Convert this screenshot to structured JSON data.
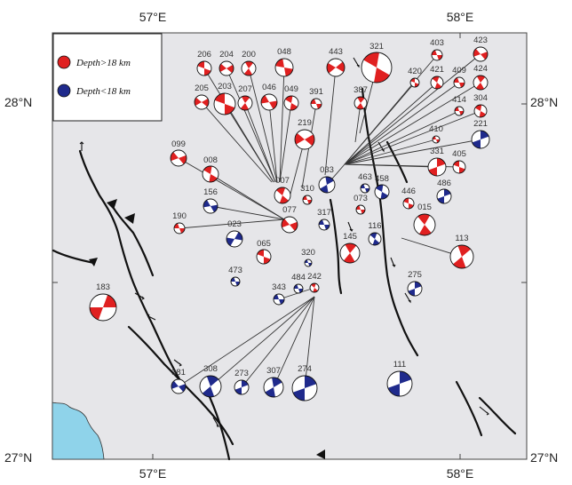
{
  "legend": {
    "deep_label": "Depth>18 km",
    "shallow_label": "Depth<18 km",
    "deep_color": "#e02020",
    "shallow_color": "#1f2a8c"
  },
  "colors": {
    "land": "#e6e6e9",
    "sea": "#8fd3ea",
    "fault": "#111111",
    "leader": "#333333"
  },
  "axes": {
    "lon_labels": [
      "57°E",
      "58°E"
    ],
    "lat_labels": [
      "28°N",
      "27°N"
    ]
  },
  "events": [
    {
      "id": "206",
      "depth": "deep"
    },
    {
      "id": "204",
      "depth": "deep"
    },
    {
      "id": "200",
      "depth": "deep"
    },
    {
      "id": "048",
      "depth": "deep"
    },
    {
      "id": "443",
      "depth": "deep"
    },
    {
      "id": "321",
      "depth": "deep"
    },
    {
      "id": "403",
      "depth": "deep"
    },
    {
      "id": "423",
      "depth": "deep"
    },
    {
      "id": "420",
      "depth": "deep"
    },
    {
      "id": "421",
      "depth": "deep"
    },
    {
      "id": "409",
      "depth": "deep"
    },
    {
      "id": "424",
      "depth": "deep"
    },
    {
      "id": "205",
      "depth": "deep"
    },
    {
      "id": "203",
      "depth": "deep"
    },
    {
      "id": "207",
      "depth": "deep"
    },
    {
      "id": "046",
      "depth": "deep"
    },
    {
      "id": "049",
      "depth": "deep"
    },
    {
      "id": "391",
      "depth": "deep"
    },
    {
      "id": "387",
      "depth": "deep"
    },
    {
      "id": "414",
      "depth": "deep"
    },
    {
      "id": "304",
      "depth": "deep"
    },
    {
      "id": "410",
      "depth": "deep"
    },
    {
      "id": "221",
      "depth": "shallow"
    },
    {
      "id": "219",
      "depth": "deep"
    },
    {
      "id": "099",
      "depth": "deep"
    },
    {
      "id": "008",
      "depth": "deep"
    },
    {
      "id": "331",
      "depth": "deep"
    },
    {
      "id": "405",
      "depth": "deep"
    },
    {
      "id": "033",
      "depth": "shallow"
    },
    {
      "id": "007",
      "depth": "deep"
    },
    {
      "id": "310",
      "depth": "deep"
    },
    {
      "id": "463",
      "depth": "shallow"
    },
    {
      "id": "458",
      "depth": "shallow"
    },
    {
      "id": "486",
      "depth": "shallow"
    },
    {
      "id": "156",
      "depth": "shallow"
    },
    {
      "id": "073",
      "depth": "deep"
    },
    {
      "id": "446",
      "depth": "deep"
    },
    {
      "id": "015",
      "depth": "deep"
    },
    {
      "id": "190",
      "depth": "deep"
    },
    {
      "id": "077",
      "depth": "deep"
    },
    {
      "id": "317",
      "depth": "shallow"
    },
    {
      "id": "023",
      "depth": "shallow"
    },
    {
      "id": "116",
      "depth": "shallow"
    },
    {
      "id": "113",
      "depth": "deep"
    },
    {
      "id": "065",
      "depth": "deep"
    },
    {
      "id": "145",
      "depth": "deep"
    },
    {
      "id": "320",
      "depth": "shallow"
    },
    {
      "id": "473",
      "depth": "shallow"
    },
    {
      "id": "484",
      "depth": "shallow"
    },
    {
      "id": "242",
      "depth": "deep"
    },
    {
      "id": "275",
      "depth": "shallow"
    },
    {
      "id": "183",
      "depth": "deep"
    },
    {
      "id": "343",
      "depth": "shallow"
    },
    {
      "id": "381",
      "depth": "shallow"
    },
    {
      "id": "308",
      "depth": "shallow"
    },
    {
      "id": "273",
      "depth": "shallow"
    },
    {
      "id": "307",
      "depth": "shallow"
    },
    {
      "id": "274",
      "depth": "shallow"
    },
    {
      "id": "111",
      "depth": "shallow"
    }
  ]
}
